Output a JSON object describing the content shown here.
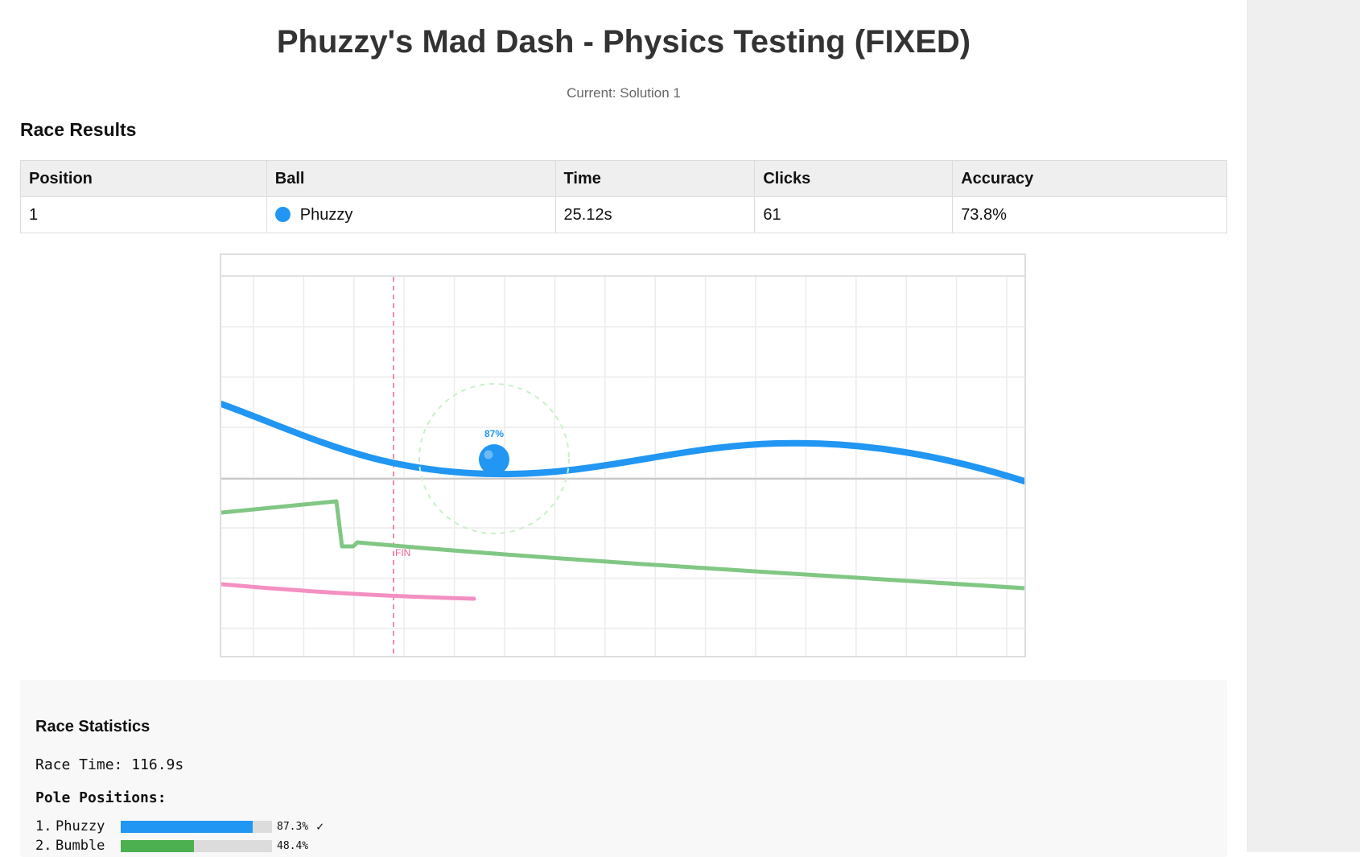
{
  "header": {
    "title": "Phuzzy's Mad Dash - Physics Testing (FIXED)",
    "subtitle": "Current: Solution 1"
  },
  "results": {
    "section_title": "Race Results",
    "columns": [
      "Position",
      "Ball",
      "Time",
      "Clicks",
      "Accuracy"
    ],
    "rows": [
      {
        "position": "1",
        "ball": "Phuzzy",
        "ball_color": "#2196f3",
        "time": "25.12s",
        "clicks": "61",
        "accuracy": "73.8%"
      }
    ]
  },
  "track": {
    "ball_label": "87%",
    "finish_label": "FIN",
    "ball_color": "#2196f3",
    "line_colors": [
      "#2196f3",
      "#81c784",
      "#f48fc1"
    ],
    "finish_color": "#f06292"
  },
  "stats": {
    "title": "Race Statistics",
    "race_time": "Race Time: 116.9s",
    "pole_title": "Pole Positions:",
    "poles": [
      {
        "rank": "1.",
        "name": "Phuzzy",
        "pct": "87.3%",
        "fraction": 0.873,
        "color": "#2196f3",
        "check": "✓"
      },
      {
        "rank": "2.",
        "name": "Bumble",
        "pct": "48.4%",
        "fraction": 0.484,
        "color": "#4caf50",
        "check": ""
      }
    ]
  }
}
